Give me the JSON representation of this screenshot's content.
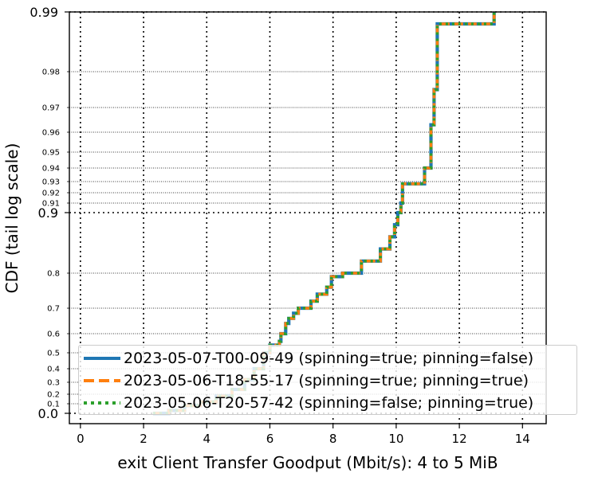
{
  "chart_data": {
    "type": "line",
    "xlabel": "exit Client Transfer Goodput (Mbit/s): 4 to 5 MiB",
    "ylabel": "CDF (tail log scale)",
    "xlim": [
      -0.35,
      14.75
    ],
    "x_ticks": [
      "0",
      "2",
      "4",
      "6",
      "8",
      "10",
      "12",
      "14"
    ],
    "y_scale": "tail-log",
    "y_major_ticks": [
      "0.0",
      "0.9",
      "0.99"
    ],
    "y_minor_ticks": [
      "0.1",
      "0.2",
      "0.3",
      "0.4",
      "0.5",
      "0.6",
      "0.7",
      "0.8",
      "0.91",
      "0.92",
      "0.93",
      "0.94",
      "0.95",
      "0.96",
      "0.97",
      "0.98"
    ],
    "grid": true,
    "legend_position": "lower-right",
    "series": [
      {
        "name": "2023-05-07-T00-09-49 (spinning=true; pinning=false)",
        "color": "#1f77b4",
        "linestyle": "solid"
      },
      {
        "name": "2023-05-06-T18-55-17 (spinning=true; pinning=true)",
        "color": "#ff7f0e",
        "linestyle": "dashed"
      },
      {
        "name": "2023-05-06-T20-57-42 (spinning=false; pinning=true)",
        "color": "#2ca02c",
        "linestyle": "dotted"
      }
    ],
    "cdf_points": [
      [
        2.3,
        0.0
      ],
      [
        2.8,
        0.03
      ],
      [
        3.3,
        0.08
      ],
      [
        3.8,
        0.12
      ],
      [
        4.3,
        0.18
      ],
      [
        4.8,
        0.24
      ],
      [
        5.2,
        0.32
      ],
      [
        5.5,
        0.4
      ],
      [
        5.8,
        0.5
      ],
      [
        6.0,
        0.54
      ],
      [
        6.3,
        0.56
      ],
      [
        6.35,
        0.6
      ],
      [
        6.5,
        0.64
      ],
      [
        6.6,
        0.66
      ],
      [
        6.75,
        0.68
      ],
      [
        6.9,
        0.7
      ],
      [
        7.3,
        0.72
      ],
      [
        7.5,
        0.74
      ],
      [
        7.8,
        0.76
      ],
      [
        7.95,
        0.79
      ],
      [
        8.3,
        0.8
      ],
      [
        8.9,
        0.82
      ],
      [
        9.5,
        0.84
      ],
      [
        9.8,
        0.86
      ],
      [
        9.95,
        0.88
      ],
      [
        10.05,
        0.9
      ],
      [
        10.15,
        0.91
      ],
      [
        10.2,
        0.928
      ],
      [
        10.9,
        0.94
      ],
      [
        11.1,
        0.963
      ],
      [
        11.2,
        0.975
      ],
      [
        11.3,
        0.988
      ],
      [
        13.1,
        0.99
      ]
    ]
  }
}
